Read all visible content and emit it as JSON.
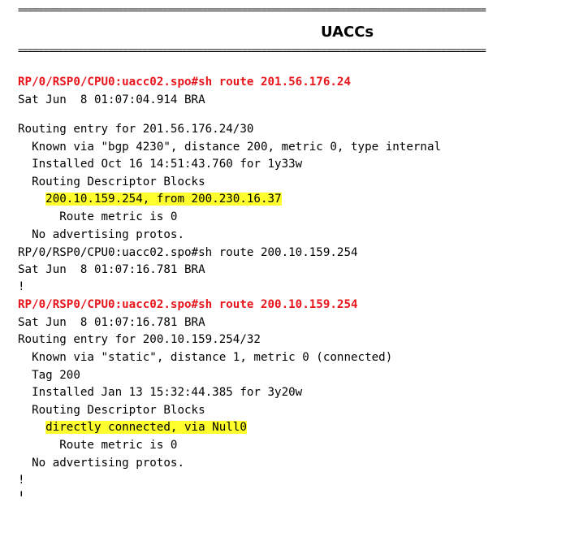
{
  "doc": {
    "rule_top": "==============================================================================================",
    "title": "UACCs",
    "rule_bottom": "==============================================================================================",
    "lines": [
      {
        "text": "RP/0/RSP0/CPU0:uacc02.spo#sh route 201.56.176.24",
        "style": "cmd"
      },
      {
        "text": "Sat Jun  8 01:07:04.914 BRA",
        "style": "plain"
      },
      {
        "text": "",
        "style": "plain"
      },
      {
        "text": "Routing entry for 201.56.176.24/30",
        "style": "plain"
      },
      {
        "text": "  Known via \"bgp 4230\", distance 200, metric 0, type internal",
        "style": "plain"
      },
      {
        "text": "  Installed Oct 16 14:51:43.760 for 1y33w",
        "style": "plain"
      },
      {
        "text": "  Routing Descriptor Blocks",
        "style": "plain"
      },
      {
        "text": "200.10.159.254, from 200.230.16.37",
        "style": "highlight",
        "indent": "    "
      },
      {
        "text": "      Route metric is 0",
        "style": "plain"
      },
      {
        "text": "  No advertising protos.",
        "style": "plain"
      },
      {
        "text": "RP/0/RSP0/CPU0:uacc02.spo#sh route 200.10.159.254",
        "style": "plain"
      },
      {
        "text": "Sat Jun  8 01:07:16.781 BRA",
        "style": "plain"
      },
      {
        "text": "!",
        "style": "plain"
      },
      {
        "text": "RP/0/RSP0/CPU0:uacc02.spo#sh route 200.10.159.254",
        "style": "cmd"
      },
      {
        "text": "Sat Jun  8 01:07:16.781 BRA",
        "style": "plain"
      },
      {
        "text": "Routing entry for 200.10.159.254/32",
        "style": "plain"
      },
      {
        "text": "  Known via \"static\", distance 1, metric 0 (connected)",
        "style": "plain"
      },
      {
        "text": "  Tag 200",
        "style": "plain"
      },
      {
        "text": "  Installed Jan 13 15:32:44.385 for 3y20w",
        "style": "plain"
      },
      {
        "text": "  Routing Descriptor Blocks",
        "style": "plain"
      },
      {
        "text": "directly connected, via Null0",
        "style": "highlight",
        "indent": "    "
      },
      {
        "text": "      Route metric is 0",
        "style": "plain"
      },
      {
        "text": "  No advertising protos.",
        "style": "plain"
      },
      {
        "text": "!",
        "style": "plain"
      },
      {
        "text": "!",
        "style": "plain"
      }
    ]
  },
  "colors": {
    "command": "#e8161c",
    "highlight": "#ffff2e",
    "text": "#000000"
  }
}
